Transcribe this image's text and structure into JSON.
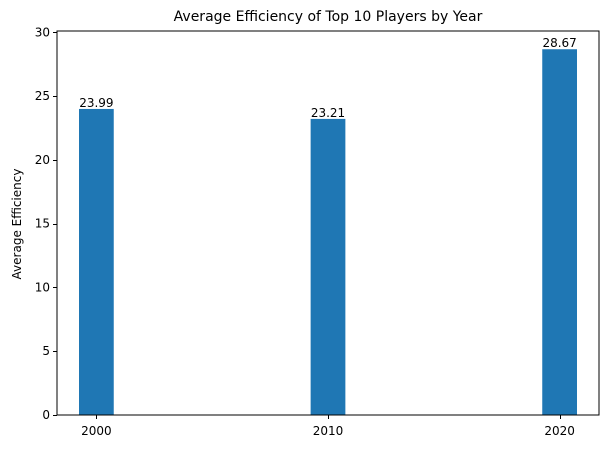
{
  "chart_data": {
    "type": "bar",
    "title": "Average Efficiency of Top 10 Players by Year",
    "xlabel": "",
    "ylabel": "Average Efficiency",
    "categories": [
      "2000",
      "2010",
      "2020"
    ],
    "x": [
      2000,
      2010,
      2020
    ],
    "values": [
      23.99,
      23.21,
      28.67
    ],
    "value_labels": [
      "23.99",
      "23.21",
      "28.67"
    ],
    "xlim": [
      1998.3,
      2021.7
    ],
    "ylim": [
      0,
      30.1
    ],
    "yticks": [
      0,
      5,
      10,
      15,
      20,
      25,
      30
    ],
    "ytick_labels": [
      "0",
      "5",
      "10",
      "15",
      "20",
      "25",
      "30"
    ],
    "grid": false,
    "legend": "none",
    "bar_color": "#1f77b4"
  }
}
